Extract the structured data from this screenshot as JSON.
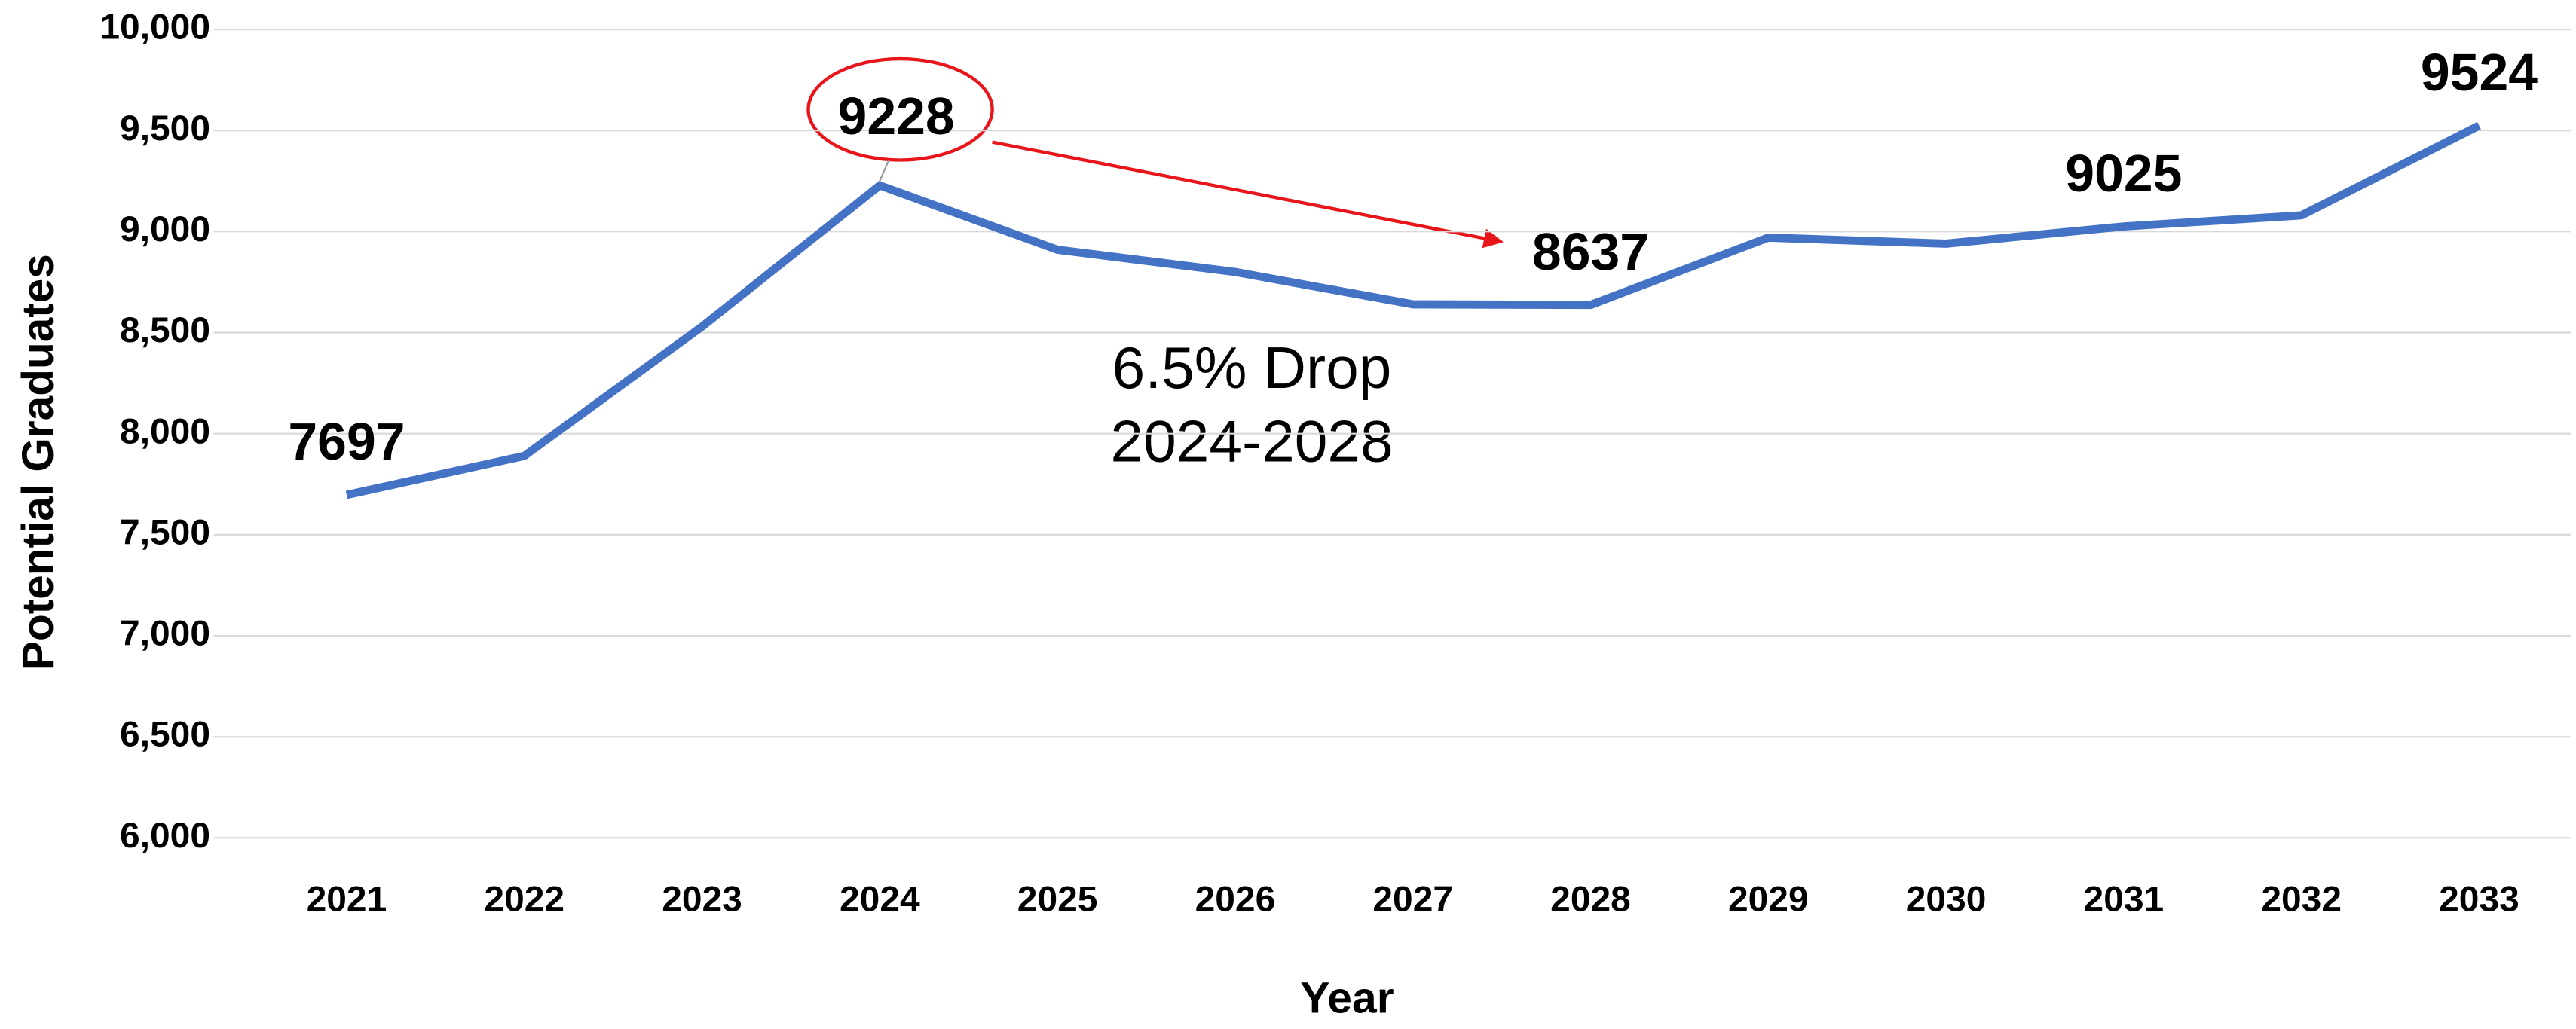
{
  "chart_data": {
    "type": "line",
    "x_label": "Year",
    "y_label": "Potential Graduates",
    "categories": [
      "2021",
      "2022",
      "2023",
      "2024",
      "2025",
      "2026",
      "2027",
      "2028",
      "2029",
      "2030",
      "2031",
      "2032",
      "2033"
    ],
    "series": [
      {
        "name": "Potential Graduates",
        "color": "#4472c4",
        "values": [
          7697,
          7890,
          8530,
          9228,
          8910,
          8800,
          8640,
          8637,
          8970,
          8940,
          9025,
          9080,
          9524
        ],
        "value_labels": [
          "7697",
          null,
          null,
          "9228",
          null,
          null,
          null,
          "8637",
          null,
          null,
          "9025",
          null,
          "9524"
        ]
      }
    ],
    "ylim": [
      6000,
      10000
    ],
    "yticks": [
      {
        "value": 6000,
        "label": "6,000"
      },
      {
        "value": 6500,
        "label": "6,500"
      },
      {
        "value": 7000,
        "label": "7,000"
      },
      {
        "value": 7500,
        "label": "7,500"
      },
      {
        "value": 8000,
        "label": "8,000"
      },
      {
        "value": 8500,
        "label": "8,500"
      },
      {
        "value": 9000,
        "label": "9,000"
      },
      {
        "value": 9500,
        "label": "9,500"
      },
      {
        "value": 10000,
        "label": "10,000"
      }
    ],
    "grid": true,
    "annotation": [
      "6.5% Drop",
      "2024-2028"
    ]
  }
}
